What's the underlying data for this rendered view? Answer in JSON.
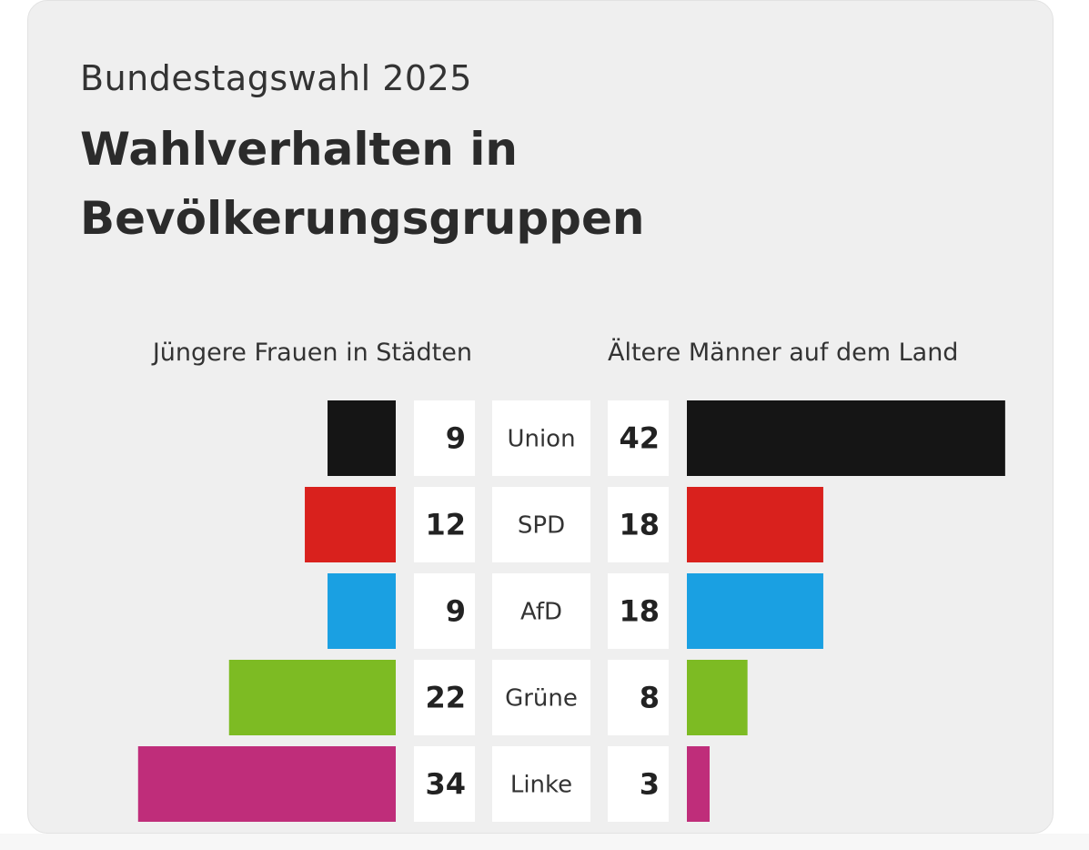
{
  "header": {
    "subtitle": "Bundestagswahl 2025",
    "title": "Wahlverhalten in Bevölkerungsgruppen"
  },
  "chart_data": {
    "type": "bar",
    "orientation": "horizontal-diverging",
    "title": "Wahlverhalten in Bevölkerungsgruppen",
    "subtitle": "Bundestagswahl 2025",
    "categories": [
      "Union",
      "SPD",
      "AfD",
      "Grüne",
      "Linke"
    ],
    "colors": [
      "#151515",
      "#d9211d",
      "#1aa0e2",
      "#7dbb23",
      "#bf2d7a"
    ],
    "series": [
      {
        "name": "Jüngere Frauen in Städten",
        "values": [
          9,
          12,
          9,
          22,
          34
        ],
        "side": "left"
      },
      {
        "name": "Ältere Männer auf dem Land",
        "values": [
          42,
          18,
          18,
          8,
          3
        ],
        "side": "right"
      }
    ]
  }
}
